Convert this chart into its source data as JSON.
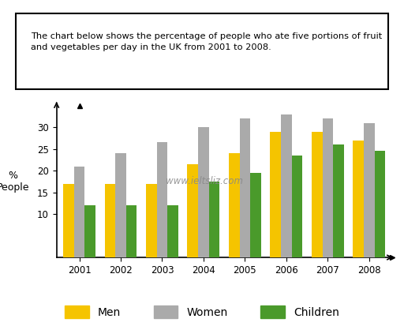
{
  "years": [
    "2001",
    "2002",
    "2003",
    "2004",
    "2005",
    "2006",
    "2007",
    "2008"
  ],
  "men": [
    17,
    17,
    17,
    21.5,
    24,
    29,
    29,
    27
  ],
  "women": [
    21,
    24,
    26.5,
    30,
    32,
    33,
    32,
    31
  ],
  "children": [
    12,
    12,
    12,
    17.5,
    19.5,
    23.5,
    26,
    24.5
  ],
  "men_color": "#F5C400",
  "women_color": "#AAAAAA",
  "children_color": "#4A9A2B",
  "ylabel": "%\nPeople",
  "ylim": [
    0,
    35
  ],
  "yticks": [
    10,
    15,
    20,
    25,
    30
  ],
  "description_line1": "The chart below shows the percentage of people who ate five portions of fruit",
  "description_line2": "and vegetables per day in the UK from 2001 to 2008.",
  "watermark": "www.ieltsliz.com",
  "bar_width": 0.26,
  "legend_labels": [
    "Men",
    "Women",
    "Children"
  ],
  "fig_bg": "#ffffff"
}
